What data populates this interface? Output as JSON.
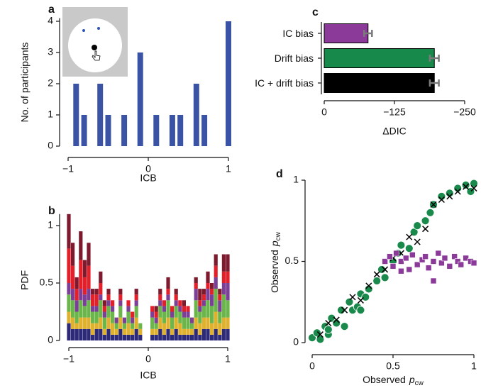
{
  "chart_data": [
    {
      "type": "bar",
      "panel": "a",
      "ylabel": "No. of participants",
      "xlabel": "ICB",
      "color": "#3a53a4",
      "x": [
        -0.9,
        -0.8,
        -0.6,
        -0.5,
        -0.3,
        -0.1,
        0.1,
        0.3,
        0.4,
        0.6,
        0.7,
        1.0
      ],
      "values": [
        2,
        1,
        2,
        1,
        1,
        3,
        1,
        1,
        1,
        2,
        1,
        4
      ],
      "xlim": [
        -1,
        1
      ],
      "xticks": [
        {
          "value": -1,
          "label": "−1"
        },
        0,
        1
      ],
      "ylim": [
        0,
        4.1
      ],
      "yticks": [
        0,
        1,
        2,
        3,
        4
      ]
    },
    {
      "type": "bar",
      "stacked": true,
      "panel": "b",
      "ylabel": "PDF",
      "xlabel": "ICB",
      "x": [
        -1,
        -0.95,
        -0.9,
        -0.85,
        -0.8,
        -0.75,
        -0.7,
        -0.65,
        -0.6,
        -0.55,
        -0.5,
        -0.45,
        -0.4,
        -0.35,
        -0.3,
        -0.25,
        -0.2,
        -0.15,
        -0.1,
        -0.05,
        0,
        0.05,
        0.1,
        0.15,
        0.2,
        0.25,
        0.3,
        0.35,
        0.4,
        0.45,
        0.5,
        0.55,
        0.6,
        0.65,
        0.7,
        0.75,
        0.8,
        0.85,
        0.9,
        0.95,
        1
      ],
      "series": [
        {
          "color": "#2e2a7a",
          "values": [
            0.15,
            0.1,
            0.1,
            0.1,
            0.1,
            0.1,
            0.05,
            0.1,
            0.1,
            0.05,
            0.1,
            0.05,
            0.05,
            0.1,
            0.05,
            0.05,
            0.05,
            0.1,
            0.05,
            0,
            0,
            0.05,
            0.05,
            0.1,
            0.05,
            0.1,
            0.05,
            0.1,
            0.05,
            0.05,
            0.05,
            0.05,
            0.1,
            0.05,
            0.1,
            0.1,
            0.05,
            0.1,
            0.05,
            0.1,
            0.1
          ]
        },
        {
          "color": "#e0b12c",
          "values": [
            0.1,
            0.1,
            0.05,
            0.1,
            0.1,
            0.1,
            0.1,
            0.05,
            0.1,
            0.05,
            0.1,
            0.1,
            0.05,
            0.1,
            0.05,
            0.1,
            0.05,
            0.1,
            0.05,
            0,
            0,
            0.05,
            0.05,
            0.1,
            0.1,
            0.1,
            0.05,
            0.1,
            0.1,
            0.05,
            0.05,
            0.05,
            0.1,
            0.1,
            0.1,
            0.1,
            0.1,
            0.15,
            0.1,
            0.1,
            0.1
          ]
        },
        {
          "color": "#6ab64a",
          "values": [
            0.15,
            0.15,
            0.1,
            0.15,
            0.1,
            0.15,
            0.1,
            0.1,
            0.15,
            0.1,
            0.1,
            0.1,
            0.05,
            0.1,
            0.05,
            0.1,
            0.05,
            0.1,
            0.05,
            0,
            0,
            0.1,
            0.05,
            0.1,
            0.1,
            0.15,
            0.1,
            0.1,
            0.1,
            0.1,
            0.1,
            0.05,
            0.15,
            0.1,
            0.1,
            0.15,
            0.15,
            0.2,
            0.1,
            0.2,
            0.15
          ]
        },
        {
          "color": "#7b3f98",
          "values": [
            0.1,
            0.1,
            0.1,
            0.1,
            0.1,
            0.1,
            0.05,
            0.05,
            0.05,
            0.05,
            0.05,
            0.05,
            0.05,
            0.05,
            0.05,
            0.05,
            0.05,
            0.05,
            0,
            0,
            0,
            0.05,
            0.05,
            0.05,
            0.05,
            0.05,
            0.05,
            0.05,
            0.05,
            0.05,
            0.05,
            0.05,
            0.1,
            0.05,
            0.05,
            0.1,
            0.1,
            0.1,
            0.1,
            0.1,
            0.15
          ]
        },
        {
          "color": "#e3202a",
          "values": [
            0.3,
            0.2,
            0.1,
            0.25,
            0.15,
            0.2,
            0.1,
            0.1,
            0.1,
            0.05,
            0.05,
            0.05,
            0,
            0.05,
            0,
            0.05,
            0.05,
            0.05,
            0,
            0,
            0,
            0.05,
            0.05,
            0.05,
            0.05,
            0.05,
            0.05,
            0.05,
            0.05,
            0.05,
            0.05,
            0,
            0.05,
            0.05,
            0.05,
            0.05,
            0.05,
            0.1,
            0.05,
            0.1,
            0.1
          ]
        },
        {
          "color": "#7d1a2e",
          "values": [
            0.3,
            0.2,
            0.1,
            0.25,
            0.15,
            0.2,
            0.05,
            0.05,
            0.1,
            0.05,
            0.05,
            0,
            0,
            0.05,
            0,
            0,
            0,
            0.05,
            0,
            0,
            0,
            0,
            0.05,
            0.05,
            0,
            0.1,
            0,
            0.05,
            0,
            0.05,
            0,
            0,
            0.05,
            0.1,
            0.05,
            0.1,
            0.05,
            0.1,
            0.05,
            0.15,
            0.15
          ]
        }
      ],
      "xlim": [
        -1,
        1
      ],
      "xticks": [
        {
          "value": -1,
          "label": "−1"
        },
        0,
        1
      ],
      "ylim": [
        0,
        1.1
      ],
      "yticks": [
        0,
        0.5,
        1
      ]
    },
    {
      "type": "bar",
      "orientation": "horizontal",
      "panel": "c",
      "xlabel": "ΔDIC",
      "categories": [
        "IC bias",
        "Drift bias",
        "IC + drift bias"
      ],
      "values": [
        -78,
        -196,
        -196
      ],
      "errors": [
        7,
        8,
        8
      ],
      "colors": [
        "#8b3a9a",
        "#17894a",
        "#000000"
      ],
      "xlim": [
        0,
        -250
      ],
      "xticks": [
        0,
        {
          "value": -125,
          "label": "−125"
        },
        {
          "value": -250,
          "label": "−250"
        }
      ]
    },
    {
      "type": "scatter",
      "panel": "d",
      "xlabel": "Observed",
      "xlabel_symbol": "p",
      "xlabel_subscript": "cw",
      "ylabel": "Observed",
      "ylabel_symbol": "p",
      "ylabel_subscript": "cw",
      "series": [
        {
          "marker": "circle",
          "color": "#198a4c",
          "x": [
            0,
            0.03,
            0.05,
            0.08,
            0.1,
            0.12,
            0.15,
            0.18,
            0.2,
            0.23,
            0.25,
            0.28,
            0.3,
            0.33,
            0.35,
            0.4,
            0.43,
            0.45,
            0.5,
            0.53,
            0.55,
            0.6,
            0.63,
            0.65,
            0.7,
            0.73,
            0.75,
            0.8,
            0.85,
            0.9,
            0.95,
            1,
            0.98,
            0.1,
            0.3
          ],
          "values": [
            0.03,
            0.06,
            0.02,
            0.1,
            0.05,
            0.15,
            0.12,
            0.2,
            0.1,
            0.25,
            0.2,
            0.22,
            0.3,
            0.28,
            0.33,
            0.38,
            0.45,
            0.4,
            0.5,
            0.55,
            0.6,
            0.58,
            0.68,
            0.72,
            0.75,
            0.8,
            0.85,
            0.9,
            0.92,
            0.95,
            0.97,
            0.98,
            0.93,
            0.08,
            0.2
          ]
        },
        {
          "marker": "x",
          "color": "#000000",
          "x": [
            0.05,
            0.1,
            0.15,
            0.2,
            0.25,
            0.3,
            0.35,
            0.4,
            0.45,
            0.5,
            0.55,
            0.6,
            0.65,
            0.7,
            0.75,
            0.8,
            0.85,
            0.9,
            0.95,
            1
          ],
          "values": [
            0.05,
            0.12,
            0.14,
            0.2,
            0.28,
            0.26,
            0.35,
            0.42,
            0.45,
            0.52,
            0.55,
            0.65,
            0.62,
            0.7,
            0.85,
            0.88,
            0.9,
            0.93,
            0.96,
            0.95
          ]
        },
        {
          "marker": "square",
          "color": "#8b3a9a",
          "x": [
            0.45,
            0.48,
            0.5,
            0.52,
            0.55,
            0.58,
            0.6,
            0.62,
            0.65,
            0.68,
            0.7,
            0.72,
            0.75,
            0.78,
            0.8,
            0.82,
            0.85,
            0.88,
            0.9,
            0.92,
            0.95,
            0.98,
            1,
            0.75,
            0.55
          ],
          "values": [
            0.5,
            0.53,
            0.47,
            0.55,
            0.5,
            0.52,
            0.45,
            0.54,
            0.48,
            0.51,
            0.53,
            0.46,
            0.5,
            0.55,
            0.49,
            0.52,
            0.47,
            0.53,
            0.5,
            0.48,
            0.52,
            0.5,
            0.49,
            0.38,
            0.44
          ]
        }
      ],
      "xlim": [
        0,
        1
      ],
      "xticks": [
        0,
        0.5,
        1
      ],
      "ylim": [
        0,
        1
      ],
      "yticks": [
        0,
        0.5,
        1
      ]
    }
  ]
}
